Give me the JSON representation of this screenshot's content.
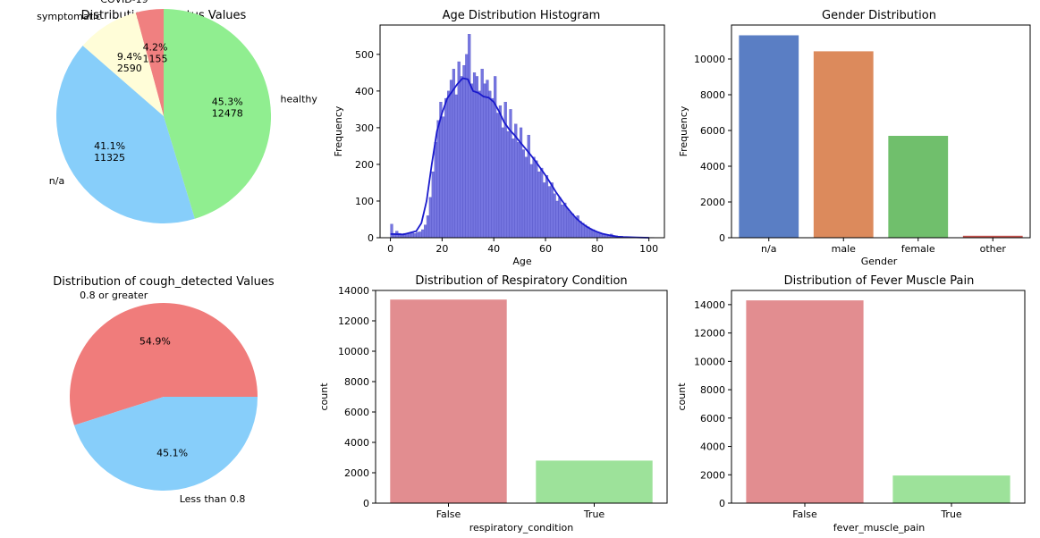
{
  "chart_data": [
    {
      "type": "pie",
      "title": "Distribution of Status Values",
      "slices": [
        {
          "label": "COVID-19",
          "value": 1155,
          "percent": "4.2%",
          "count": "1155",
          "color": "#f08080"
        },
        {
          "label": "symptomatic",
          "value": 2590,
          "percent": "9.4%",
          "count": "2590",
          "color": "#fffdd8"
        },
        {
          "label": "n/a",
          "value": 11325,
          "percent": "41.1%",
          "count": "11325",
          "color": "#87cefa"
        },
        {
          "label": "healthy",
          "value": 12478,
          "percent": "45.3%",
          "count": "12478",
          "color": "#90ee90"
        }
      ],
      "startangle": 90,
      "direction": "counterclockwise"
    },
    {
      "type": "bar",
      "title": "Age Distribution Histogram",
      "subtype": "histogram with kde",
      "xlabel": "Age",
      "ylabel": "Frequency",
      "xlim": [
        -4,
        106
      ],
      "ylim": [
        0,
        580
      ],
      "xticks": [
        0,
        20,
        40,
        60,
        80,
        100
      ],
      "yticks": [
        0,
        100,
        200,
        300,
        400,
        500
      ],
      "bar_color": "#6666dd",
      "kde_color": "#1a1acc",
      "bins": [
        [
          0,
          37
        ],
        [
          1,
          12
        ],
        [
          2,
          18
        ],
        [
          3,
          12
        ],
        [
          4,
          10
        ],
        [
          5,
          12
        ],
        [
          6,
          10
        ],
        [
          7,
          12
        ],
        [
          8,
          14
        ],
        [
          9,
          12
        ],
        [
          10,
          15
        ],
        [
          11,
          16
        ],
        [
          12,
          22
        ],
        [
          13,
          35
        ],
        [
          14,
          60
        ],
        [
          15,
          110
        ],
        [
          16,
          180
        ],
        [
          17,
          260
        ],
        [
          18,
          320
        ],
        [
          19,
          370
        ],
        [
          20,
          330
        ],
        [
          21,
          380
        ],
        [
          22,
          400
        ],
        [
          23,
          430
        ],
        [
          24,
          460
        ],
        [
          25,
          390
        ],
        [
          26,
          480
        ],
        [
          27,
          440
        ],
        [
          28,
          470
        ],
        [
          29,
          500
        ],
        [
          30,
          555
        ],
        [
          31,
          420
        ],
        [
          32,
          450
        ],
        [
          33,
          440
        ],
        [
          34,
          400
        ],
        [
          35,
          460
        ],
        [
          36,
          420
        ],
        [
          37,
          430
        ],
        [
          38,
          400
        ],
        [
          39,
          380
        ],
        [
          40,
          440
        ],
        [
          41,
          340
        ],
        [
          42,
          360
        ],
        [
          43,
          300
        ],
        [
          44,
          370
        ],
        [
          45,
          290
        ],
        [
          46,
          350
        ],
        [
          47,
          270
        ],
        [
          48,
          310
        ],
        [
          49,
          260
        ],
        [
          50,
          300
        ],
        [
          51,
          240
        ],
        [
          52,
          220
        ],
        [
          53,
          280
        ],
        [
          54,
          200
        ],
        [
          55,
          220
        ],
        [
          56,
          210
        ],
        [
          57,
          180
        ],
        [
          58,
          190
        ],
        [
          59,
          150
        ],
        [
          60,
          170
        ],
        [
          61,
          140
        ],
        [
          62,
          150
        ],
        [
          63,
          120
        ],
        [
          64,
          100
        ],
        [
          65,
          110
        ],
        [
          66,
          90
        ],
        [
          67,
          95
        ],
        [
          68,
          80
        ],
        [
          69,
          70
        ],
        [
          70,
          65
        ],
        [
          71,
          55
        ],
        [
          72,
          60
        ],
        [
          73,
          45
        ],
        [
          74,
          40
        ],
        [
          75,
          35
        ],
        [
          76,
          30
        ],
        [
          77,
          25
        ],
        [
          78,
          22
        ],
        [
          79,
          18
        ],
        [
          80,
          15
        ],
        [
          81,
          12
        ],
        [
          82,
          10
        ],
        [
          83,
          9
        ],
        [
          84,
          8
        ],
        [
          85,
          10
        ],
        [
          86,
          6
        ],
        [
          87,
          5
        ],
        [
          88,
          4
        ],
        [
          89,
          4
        ],
        [
          90,
          3
        ],
        [
          91,
          3
        ],
        [
          92,
          2
        ],
        [
          93,
          2
        ],
        [
          94,
          2
        ],
        [
          95,
          1
        ],
        [
          96,
          1
        ],
        [
          97,
          1
        ],
        [
          98,
          1
        ],
        [
          99,
          1
        ],
        [
          100,
          1
        ],
        [
          101,
          1
        ]
      ],
      "kde": [
        [
          0,
          10
        ],
        [
          5,
          9
        ],
        [
          10,
          18
        ],
        [
          12,
          40
        ],
        [
          14,
          100
        ],
        [
          16,
          200
        ],
        [
          18,
          290
        ],
        [
          20,
          340
        ],
        [
          22,
          380
        ],
        [
          24,
          400
        ],
        [
          26,
          420
        ],
        [
          28,
          435
        ],
        [
          30,
          432
        ],
        [
          32,
          400
        ],
        [
          34,
          395
        ],
        [
          36,
          385
        ],
        [
          38,
          382
        ],
        [
          40,
          370
        ],
        [
          42,
          345
        ],
        [
          44,
          315
        ],
        [
          46,
          295
        ],
        [
          48,
          280
        ],
        [
          50,
          262
        ],
        [
          52,
          245
        ],
        [
          54,
          228
        ],
        [
          56,
          210
        ],
        [
          58,
          190
        ],
        [
          60,
          170
        ],
        [
          62,
          148
        ],
        [
          64,
          125
        ],
        [
          66,
          105
        ],
        [
          68,
          85
        ],
        [
          70,
          68
        ],
        [
          72,
          52
        ],
        [
          74,
          40
        ],
        [
          76,
          30
        ],
        [
          78,
          22
        ],
        [
          80,
          16
        ],
        [
          82,
          11
        ],
        [
          84,
          8
        ],
        [
          86,
          5
        ],
        [
          88,
          3
        ],
        [
          90,
          2
        ],
        [
          95,
          1
        ],
        [
          100,
          0
        ]
      ]
    },
    {
      "type": "bar",
      "title": "Gender Distribution",
      "xlabel": "Gender",
      "ylabel": "Frequency",
      "categories": [
        "n/a",
        "male",
        "female",
        "other"
      ],
      "values": [
        11325,
        10430,
        5700,
        110
      ],
      "colors": [
        "#5a7ec4",
        "#dc8a5c",
        "#70bf6c",
        "#c5544e"
      ],
      "ylim": [
        0,
        11900
      ],
      "yticks": [
        0,
        2000,
        4000,
        6000,
        8000,
        10000
      ]
    },
    {
      "type": "pie",
      "title": "Distribution of cough_detected Values",
      "slices": [
        {
          "label": "0.8 or greater",
          "value": 54.9,
          "percent": "54.9%",
          "color": "#f07c7b"
        },
        {
          "label": "Less than 0.8",
          "value": 45.1,
          "percent": "45.1%",
          "color": "#87cefa"
        }
      ],
      "startangle": 0,
      "direction": "counterclockwise"
    },
    {
      "type": "bar",
      "title": "Distribution of Respiratory Condition",
      "xlabel": "respiratory_condition",
      "ylabel": "count",
      "categories": [
        "False",
        "True"
      ],
      "values": [
        13400,
        2800
      ],
      "colors": [
        "#e28d90",
        "#9de29a"
      ],
      "ylim": [
        0,
        14000
      ],
      "yticks": [
        0,
        2000,
        4000,
        6000,
        8000,
        10000,
        12000,
        14000
      ]
    },
    {
      "type": "bar",
      "title": "Distribution of Fever Muscle Pain",
      "xlabel": "fever_muscle_pain",
      "ylabel": "count",
      "categories": [
        "False",
        "True"
      ],
      "values": [
        14300,
        1950
      ],
      "colors": [
        "#e28d90",
        "#9de29a"
      ],
      "ylim": [
        0,
        15000
      ],
      "yticks": [
        0,
        2000,
        4000,
        6000,
        8000,
        10000,
        12000,
        14000
      ]
    }
  ]
}
